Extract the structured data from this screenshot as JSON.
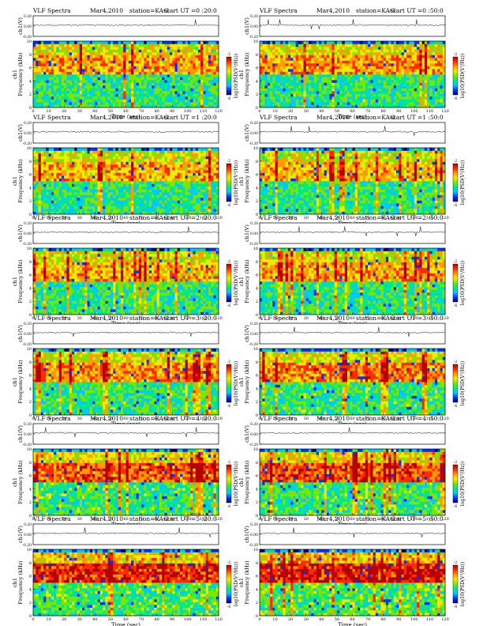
{
  "chart_data": {
    "type": "heatmap",
    "layout": "6 rows x 2 columns of VLF spectrogram panels",
    "common": {
      "title": "VLF Spectra",
      "date": "Mar4,2010",
      "station": "station=KAG",
      "xlabel": "Time (sec)",
      "ylabel": "Frequency (kHz)",
      "ylabel_channel": "ch1",
      "trace_label": "ch1(V)",
      "trace_ticks": [
        "0.20",
        "0.00",
        "-0.20"
      ],
      "trace_ylim": [
        -0.2,
        0.2
      ],
      "colorbar_label": "log10(PSD(V²/Hz))",
      "colorbar_range": [
        -6,
        -2
      ],
      "colorbar_colors": [
        "#00007a",
        "#0033ff",
        "#00c8ff",
        "#00e88a",
        "#7ce600",
        "#f2ea00",
        "#ff9a00",
        "#ff2a00",
        "#b40000"
      ],
      "ylim": [
        0,
        10
      ],
      "yticks": [
        0,
        2,
        4,
        6,
        8,
        10
      ],
      "xlim": [
        0,
        120
      ],
      "xticks": [
        0,
        10,
        20,
        30,
        40,
        50,
        60,
        70,
        80,
        90,
        100,
        110,
        120
      ],
      "grid": false
    },
    "panels": [
      {
        "start_label": "start UT =0 :20:0",
        "intensity": 0.45
      },
      {
        "start_label": "start UT =0 :50:0",
        "intensity": 0.48
      },
      {
        "start_label": "start UT =1 :20:0",
        "intensity": 0.42
      },
      {
        "start_label": "start UT =1 :50:0",
        "intensity": 0.4
      },
      {
        "start_label": "start UT =2 :20:0",
        "intensity": 0.4
      },
      {
        "start_label": "start UT =2 :50:0",
        "intensity": 0.44
      },
      {
        "start_label": "start UT =3 :20:0",
        "intensity": 0.5
      },
      {
        "start_label": "start UT =3 :50:0",
        "intensity": 0.55
      },
      {
        "start_label": "start UT =4 :20:0",
        "intensity": 0.65
      },
      {
        "start_label": "start UT =4 :50:0",
        "intensity": 0.68
      },
      {
        "start_label": "start UT =5 :20:0",
        "intensity": 0.82
      },
      {
        "start_label": "start UT =5 :50:0",
        "intensity": 0.85
      }
    ]
  }
}
